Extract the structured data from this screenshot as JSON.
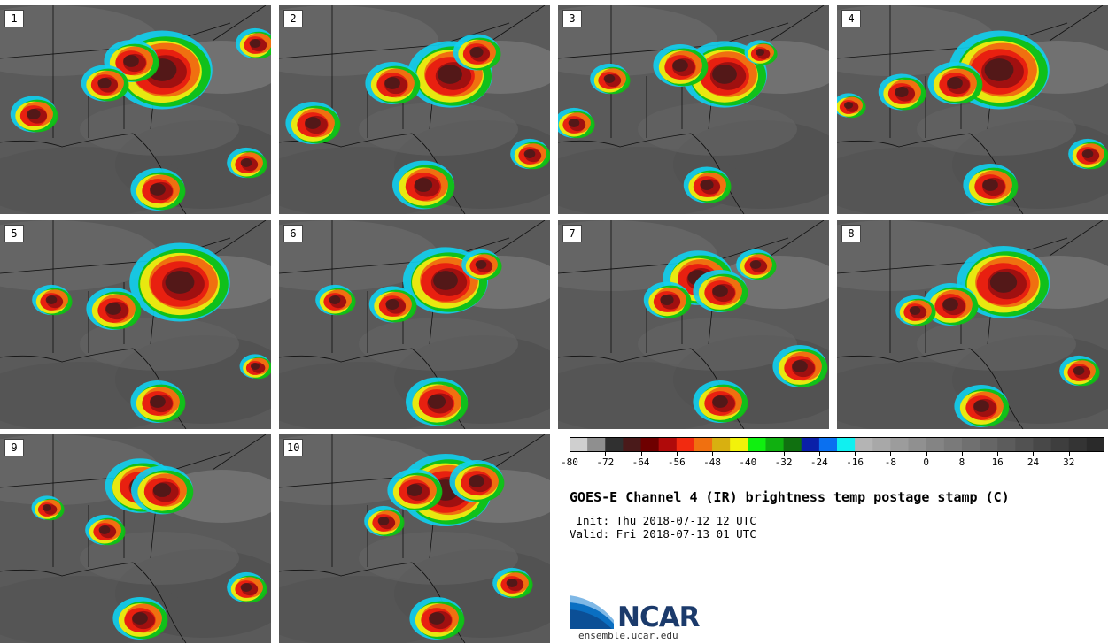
{
  "title": "GOES-E Channel 4 (IR) brightness temp postage stamp (C)",
  "init": " Init: Thu 2018-07-12 12 UTC",
  "valid": "Valid: Fri 2018-07-13 01 UTC",
  "logo": {
    "name": "NCAR",
    "url": "ensemble.ucar.edu"
  },
  "panels": [
    {
      "label": "1"
    },
    {
      "label": "2"
    },
    {
      "label": "3"
    },
    {
      "label": "4"
    },
    {
      "label": "5"
    },
    {
      "label": "6"
    },
    {
      "label": "7"
    },
    {
      "label": "8"
    },
    {
      "label": "9"
    },
    {
      "label": "10"
    }
  ],
  "colorbar": {
    "ticks": [
      "-80",
      "-72",
      "-64",
      "-56",
      "-48",
      "-40",
      "-32",
      "-24",
      "-16",
      "-8",
      "0",
      "8",
      "16",
      "24",
      "32"
    ],
    "colors": [
      "#cfcfcf",
      "#8f8f8f",
      "#303030",
      "#4a1a1a",
      "#6e0000",
      "#b00a0a",
      "#f22a10",
      "#f07010",
      "#d8b010",
      "#f2f20a",
      "#10f010",
      "#10b010",
      "#107010",
      "#0a20a8",
      "#0a70f0",
      "#10f0f0",
      "#b4b4b4",
      "#a8a8a8",
      "#9c9c9c",
      "#909090",
      "#848484",
      "#7a7a7a",
      "#707070",
      "#666666",
      "#5c5c5c",
      "#525252",
      "#484848",
      "#3e3e3e",
      "#343434",
      "#2a2a2a"
    ]
  }
}
